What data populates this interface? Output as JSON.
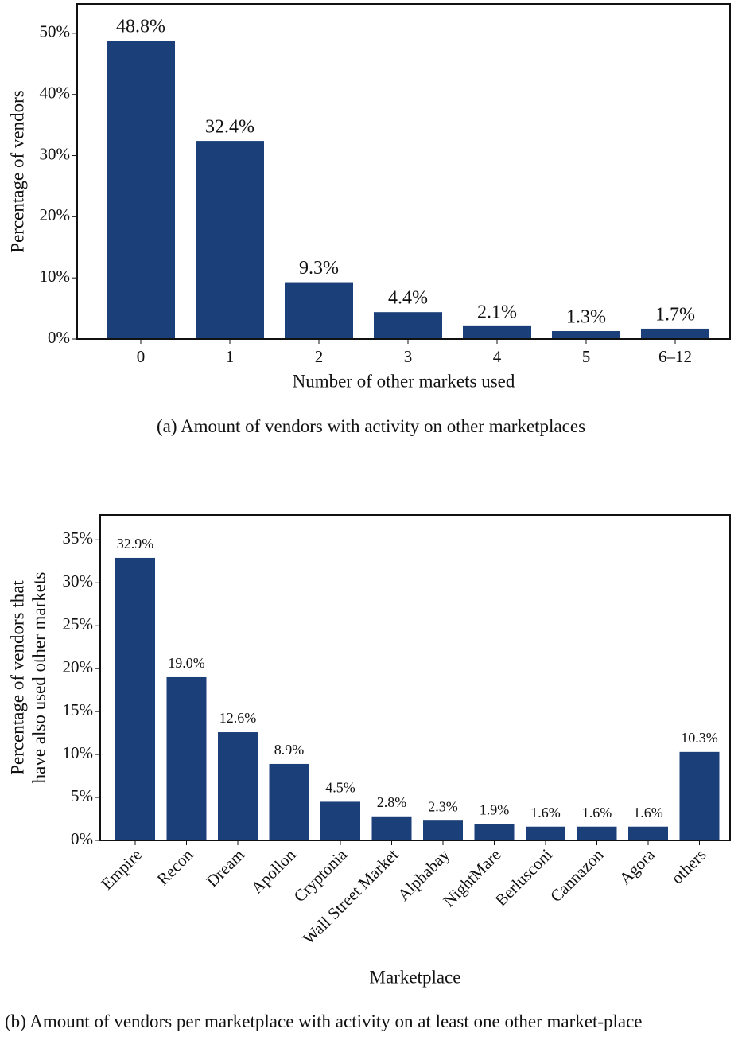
{
  "chart_data": [
    {
      "type": "bar",
      "color": "#1b3f78",
      "ylabel": [
        "Percentage of vendors"
      ],
      "xlabel": "Number of other markets used",
      "caption": "(a) Amount of vendors with activity on other marketplaces",
      "categories": [
        "0",
        "1",
        "2",
        "3",
        "4",
        "5",
        "6–12"
      ],
      "values": [
        48.8,
        32.4,
        9.3,
        4.4,
        2.1,
        1.3,
        1.7
      ],
      "value_labels": [
        "48.8%",
        "32.4%",
        "9.3%",
        "4.4%",
        "2.1%",
        "1.3%",
        "1.7%"
      ],
      "ylim": [
        0,
        54.8
      ],
      "yticks": [
        {
          "value": 0,
          "label": "0%"
        },
        {
          "value": 10,
          "label": "10%"
        },
        {
          "value": 20,
          "label": "20%"
        },
        {
          "value": 30,
          "label": "30%"
        },
        {
          "value": 40,
          "label": "40%"
        },
        {
          "value": 50,
          "label": "50%"
        }
      ]
    },
    {
      "type": "bar",
      "color": "#1b3f78",
      "ylabel": [
        "Percentage of vendors that",
        "have also used other markets"
      ],
      "xlabel": "Marketplace",
      "caption": "(b) Amount of vendors per marketplace with activity on at least one other market-place",
      "categories": [
        "Empire",
        "Recon",
        "Dream",
        "Apollon",
        "Cryptonia",
        "Wall Street Market",
        "Alphabay",
        "NightMare",
        "Berlusconi",
        "Cannazon",
        "Agora",
        "others"
      ],
      "values": [
        32.9,
        19.0,
        12.6,
        8.9,
        4.5,
        2.8,
        2.3,
        1.9,
        1.6,
        1.6,
        1.6,
        10.3
      ],
      "value_labels": [
        "32.9%",
        "19.0%",
        "12.6%",
        "8.9%",
        "4.5%",
        "2.8%",
        "2.3%",
        "1.9%",
        "1.6%",
        "1.6%",
        "1.6%",
        "10.3%"
      ],
      "ylim": [
        0,
        37.9
      ],
      "yticks": [
        {
          "value": 0,
          "label": "0%"
        },
        {
          "value": 5,
          "label": "5%"
        },
        {
          "value": 10,
          "label": "10%"
        },
        {
          "value": 15,
          "label": "15%"
        },
        {
          "value": 20,
          "label": "20%"
        },
        {
          "value": 25,
          "label": "25%"
        },
        {
          "value": 30,
          "label": "30%"
        },
        {
          "value": 35,
          "label": "35%"
        }
      ]
    }
  ]
}
